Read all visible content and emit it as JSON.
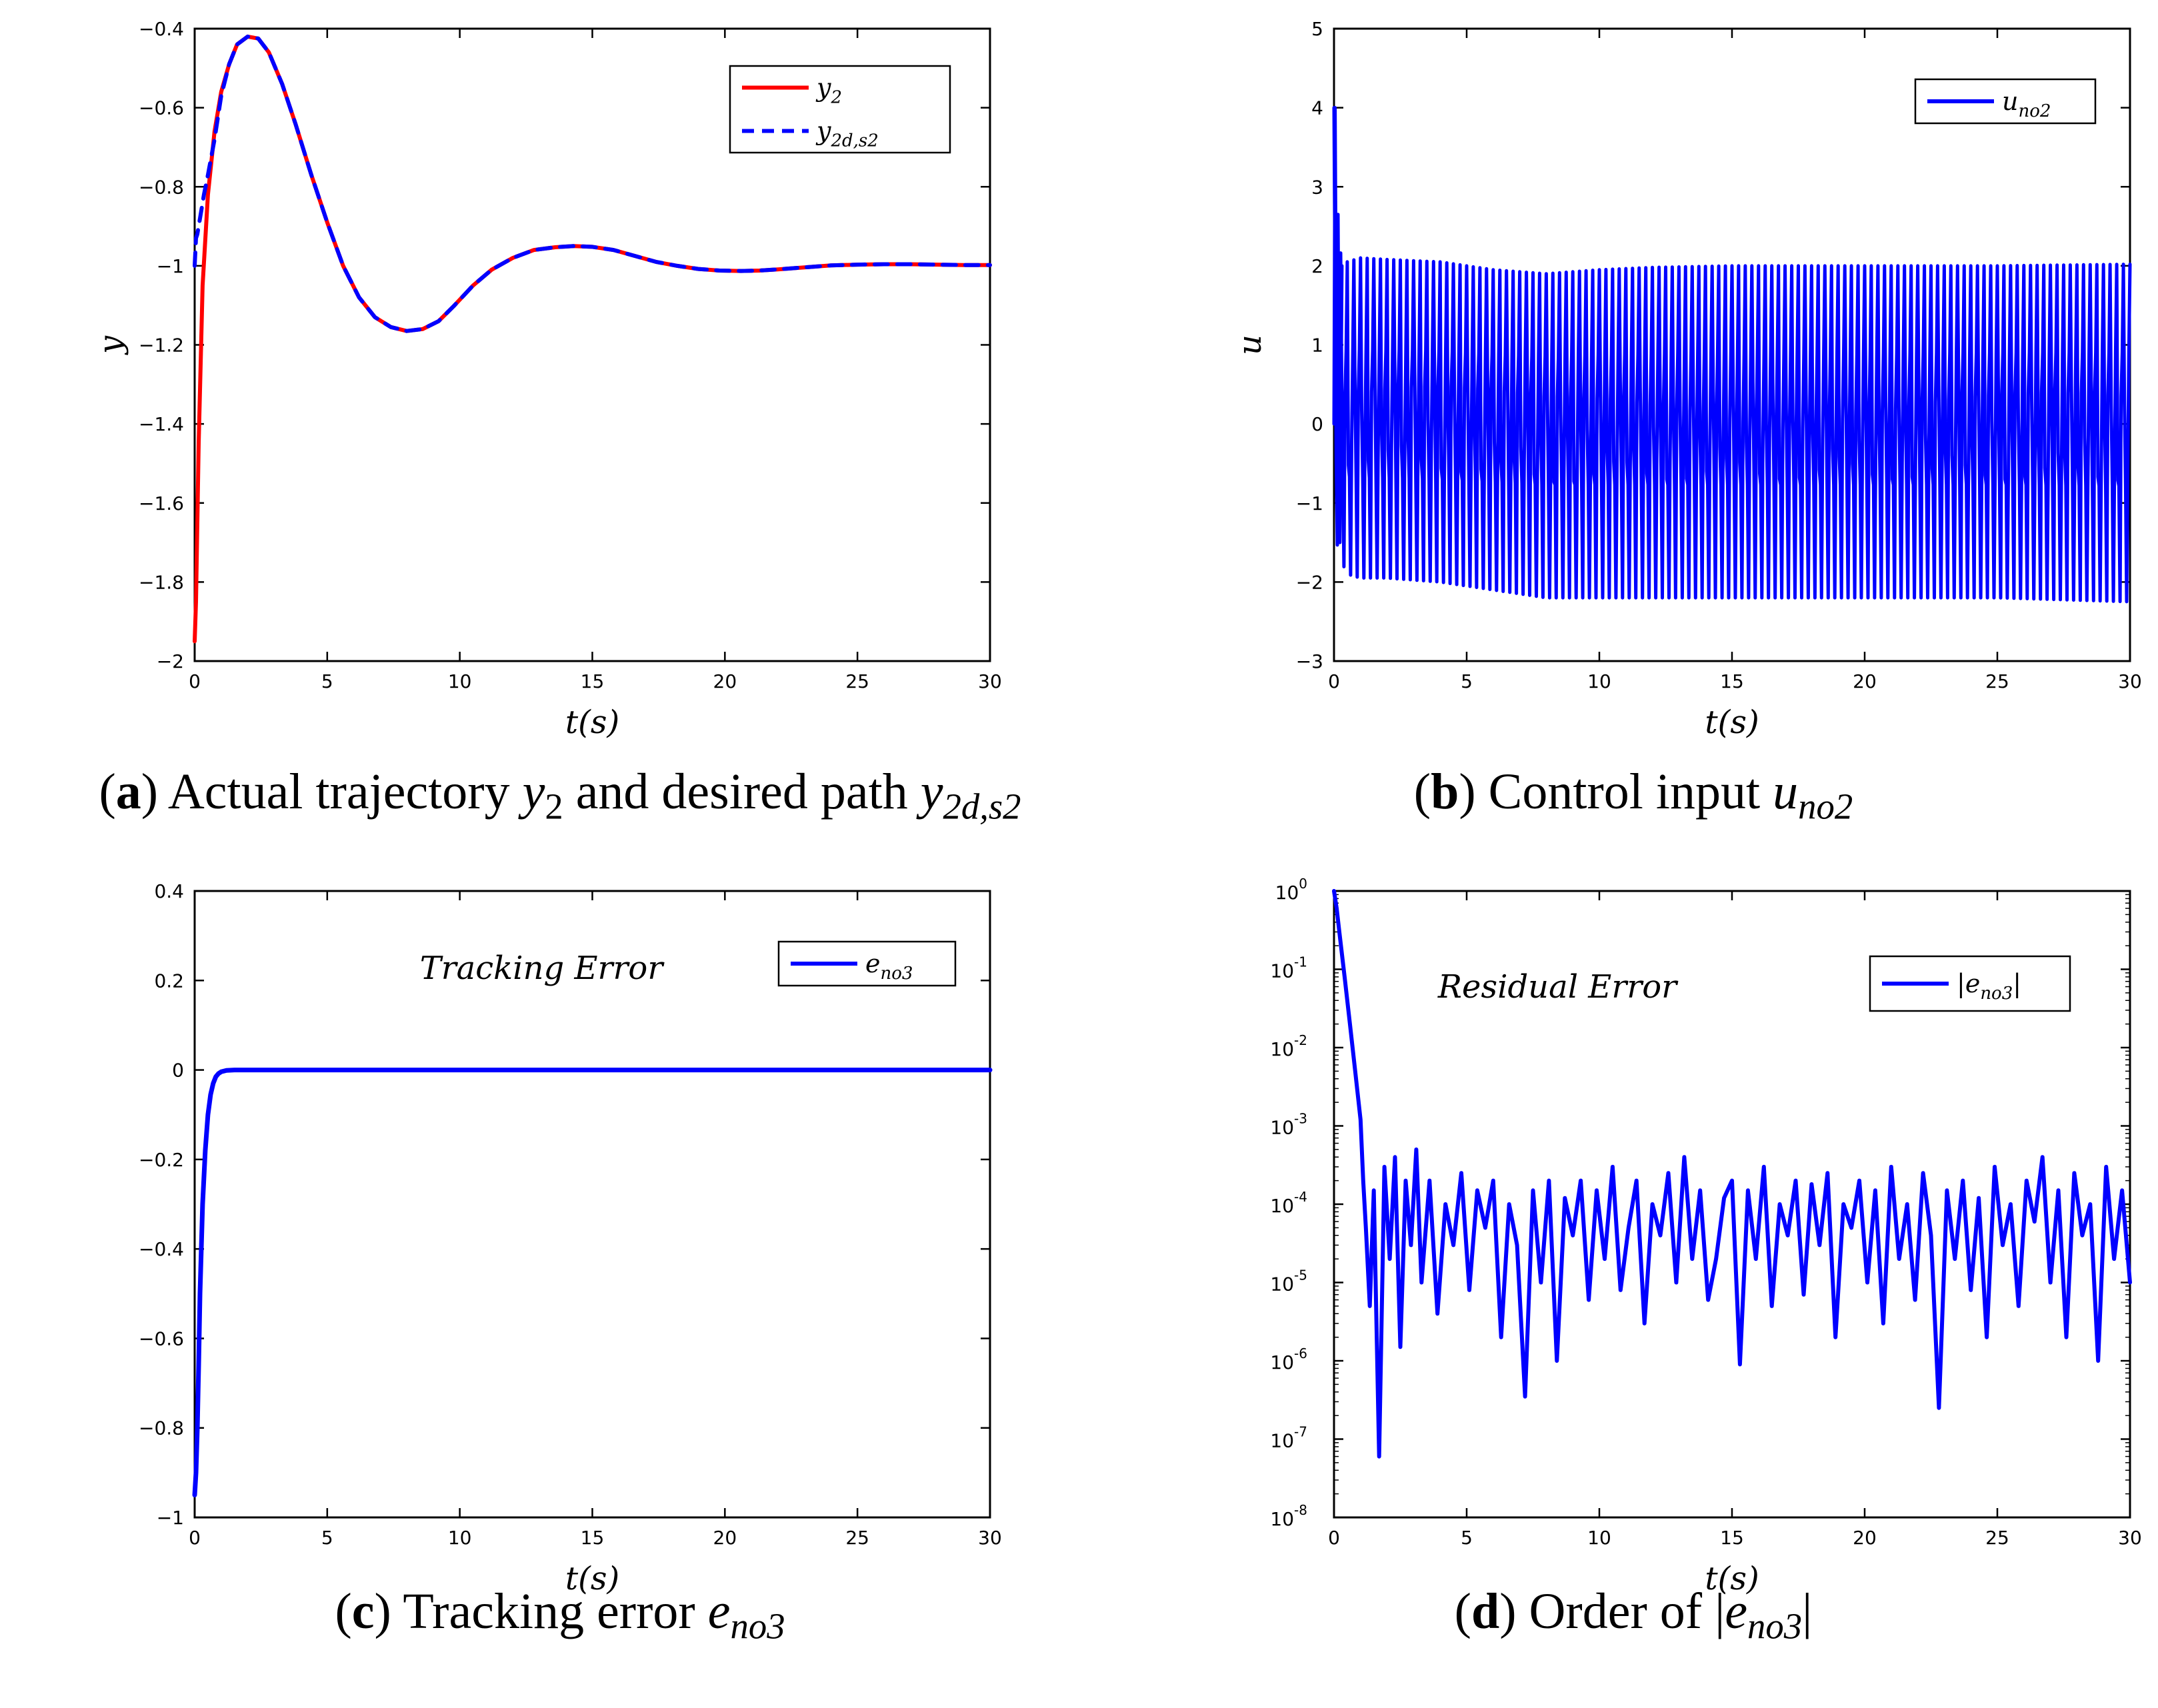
{
  "colors": {
    "red": "#ff0000",
    "blue": "#0000ff",
    "black": "#000000"
  },
  "chart_data": [
    {
      "id": "a",
      "type": "line",
      "xlabel": "t(s)",
      "ylabel": "y",
      "xlim": [
        0,
        30
      ],
      "ylim": [
        -2,
        -0.4
      ],
      "xticks": [
        "0",
        "5",
        "10",
        "15",
        "20",
        "25",
        "30"
      ],
      "yticks": [
        "−0.4",
        "−0.6",
        "−0.8",
        "−1",
        "−1.2",
        "−1.4",
        "−1.6",
        "−1.8",
        "−2"
      ],
      "legend_position": "top-right",
      "series": [
        {
          "name": "y2",
          "label_main": "y",
          "label_sub": "2",
          "style": "solid",
          "color": "#ff0000",
          "x": [
            0,
            0.05,
            0.15,
            0.3,
            0.5,
            0.75,
            1.0,
            1.3,
            1.6,
            2.0,
            2.4,
            2.8,
            3.3,
            3.8,
            4.4,
            5.0,
            5.6,
            6.2,
            6.8,
            7.4,
            8.0,
            8.6,
            9.2,
            9.8,
            10.5,
            11.2,
            12.0,
            12.8,
            13.6,
            14.3,
            15.0,
            15.8,
            16.6,
            17.4,
            18.2,
            19.0,
            19.8,
            20.6,
            21.3,
            22.0,
            23.0,
            24.0,
            25.0,
            26.0,
            27.0,
            28.0,
            29.0,
            30.0
          ],
          "values": [
            -1.95,
            -1.85,
            -1.45,
            -1.05,
            -0.82,
            -0.66,
            -0.56,
            -0.49,
            -0.44,
            -0.42,
            -0.425,
            -0.46,
            -0.54,
            -0.64,
            -0.77,
            -0.89,
            -1.0,
            -1.08,
            -1.13,
            -1.155,
            -1.165,
            -1.16,
            -1.14,
            -1.1,
            -1.05,
            -1.01,
            -0.98,
            -0.96,
            -0.953,
            -0.95,
            -0.952,
            -0.96,
            -0.975,
            -0.99,
            -1.0,
            -1.008,
            -1.012,
            -1.013,
            -1.012,
            -1.009,
            -1.004,
            -0.999,
            -0.997,
            -0.996,
            -0.996,
            -0.997,
            -0.998,
            -0.998
          ]
        },
        {
          "name": "y2d,s2",
          "label_main": "y",
          "label_sub": "2d,s2",
          "style": "dashed",
          "color": "#0000ff",
          "x": [
            0,
            0.05,
            0.1,
            0.2,
            0.35,
            0.5,
            0.75,
            1.0,
            1.3,
            1.6,
            2.0,
            2.4,
            2.8,
            3.3,
            3.8,
            4.4,
            5.0,
            5.6,
            6.2,
            6.8,
            7.4,
            8.0,
            8.6,
            9.2,
            9.8,
            10.5,
            11.2,
            12.0,
            12.8,
            13.6,
            14.3,
            15.0,
            15.8,
            16.6,
            17.4,
            18.2,
            19.0,
            19.8,
            20.6,
            21.3,
            22.0,
            23.0,
            24.0,
            25.0,
            26.0,
            27.0,
            28.0,
            29.0,
            30.0
          ],
          "values": [
            -1.0,
            -0.93,
            -0.92,
            -0.88,
            -0.82,
            -0.77,
            -0.68,
            -0.57,
            -0.49,
            -0.44,
            -0.42,
            -0.425,
            -0.46,
            -0.54,
            -0.64,
            -0.77,
            -0.89,
            -1.0,
            -1.08,
            -1.13,
            -1.155,
            -1.165,
            -1.16,
            -1.14,
            -1.1,
            -1.05,
            -1.01,
            -0.98,
            -0.96,
            -0.953,
            -0.95,
            -0.952,
            -0.96,
            -0.975,
            -0.99,
            -1.0,
            -1.008,
            -1.012,
            -1.013,
            -1.012,
            -1.009,
            -1.004,
            -0.999,
            -0.997,
            -0.996,
            -0.996,
            -0.997,
            -0.998,
            -0.998
          ]
        }
      ],
      "caption": {
        "letter": "a",
        "text1": " Actual trajectory ",
        "v1": "y",
        "s1": "2",
        "text2": " and desired path ",
        "v2": "y",
        "s2": "2d,s2"
      }
    },
    {
      "id": "b",
      "type": "line",
      "xlabel": "t(s)",
      "ylabel": "u",
      "xlim": [
        0,
        30
      ],
      "ylim": [
        -3,
        5
      ],
      "xticks": [
        "0",
        "5",
        "10",
        "15",
        "20",
        "25",
        "30"
      ],
      "yticks": [
        "5",
        "4",
        "3",
        "2",
        "1",
        "0",
        "−1",
        "−2",
        "−3"
      ],
      "legend_position": "top-right",
      "series": [
        {
          "name": "uno2",
          "label_main": "u",
          "label_sub": "no2",
          "style": "solid",
          "color": "#0000ff",
          "oscillation_period": 0.25,
          "peak_x": [
            0.0,
            0.1,
            0.3,
            0.5,
            1.0,
            2.0,
            4.0,
            6.0,
            8.0,
            10.0,
            12.0,
            15.0,
            20.0,
            25.0,
            30.0
          ],
          "upper_envelope": [
            4.0,
            2.65,
            2.0,
            2.05,
            2.1,
            2.08,
            2.05,
            1.95,
            1.9,
            1.95,
            1.98,
            2.0,
            2.0,
            2.0,
            2.02
          ],
          "lower_envelope": [
            0.0,
            -1.5,
            -1.75,
            -1.9,
            -1.95,
            -1.95,
            -2.0,
            -2.1,
            -2.2,
            -2.2,
            -2.2,
            -2.2,
            -2.2,
            -2.2,
            -2.25
          ]
        }
      ],
      "caption": {
        "letter": "b",
        "text1": " Control input ",
        "v1": "u",
        "s1": "no2"
      }
    },
    {
      "id": "c",
      "type": "line",
      "xlabel": "t(s)",
      "ylabel": "",
      "xlim": [
        0,
        30
      ],
      "ylim": [
        -1,
        0.4
      ],
      "xticks": [
        "0",
        "5",
        "10",
        "15",
        "20",
        "25",
        "30"
      ],
      "yticks": [
        "0.4",
        "0.2",
        "0",
        "−0.2",
        "−0.4",
        "−0.6",
        "−0.8",
        "−1"
      ],
      "annotation": "Tracking Error",
      "legend_position": "top-right",
      "series": [
        {
          "name": "eno3",
          "label_main": "e",
          "label_sub": "no3",
          "style": "solid",
          "color": "#0000ff",
          "x": [
            0,
            0.05,
            0.1,
            0.15,
            0.2,
            0.3,
            0.4,
            0.5,
            0.6,
            0.7,
            0.8,
            0.9,
            1.0,
            1.2,
            1.5,
            2.0,
            5.0,
            10.0,
            15.0,
            20.0,
            25.0,
            30.0
          ],
          "values": [
            -0.95,
            -0.9,
            -0.8,
            -0.66,
            -0.5,
            -0.3,
            -0.18,
            -0.1,
            -0.055,
            -0.03,
            -0.015,
            -0.008,
            -0.004,
            -0.001,
            0,
            0,
            0,
            0,
            0,
            0,
            0,
            0
          ]
        }
      ],
      "caption": {
        "letter": "c",
        "text1": " Tracking error ",
        "v1": "e",
        "s1": "no3"
      }
    },
    {
      "id": "d",
      "type": "line",
      "scale": "log",
      "xlabel": "t(s)",
      "ylabel": "",
      "xlim": [
        0,
        30
      ],
      "ylim_exponent": [
        -8,
        0
      ],
      "xticks": [
        "0",
        "5",
        "10",
        "15",
        "20",
        "25",
        "30"
      ],
      "yticks_base": "10",
      "yticks_exp": [
        "0",
        "-1",
        "-2",
        "-3",
        "-4",
        "-5",
        "-6",
        "-7",
        "-8"
      ],
      "annotation": "Residual Error",
      "legend_position": "top-right",
      "series": [
        {
          "name": "|eno3|",
          "label_main": "e",
          "label_sub": "no3",
          "style": "solid",
          "color": "#0000ff",
          "x": [
            0,
            0.1,
            0.2,
            0.4,
            0.6,
            0.8,
            1.0,
            1.1,
            1.2,
            1.35,
            1.5,
            1.7,
            1.9,
            2.1,
            2.3,
            2.5,
            2.7,
            2.9,
            3.1,
            3.3,
            3.6,
            3.9,
            4.2,
            4.5,
            4.8,
            5.1,
            5.4,
            5.7,
            6.0,
            6.3,
            6.6,
            6.9,
            7.2,
            7.5,
            7.8,
            8.1,
            8.4,
            8.7,
            9.0,
            9.3,
            9.6,
            9.9,
            10.2,
            10.5,
            10.8,
            11.1,
            11.4,
            11.7,
            12.0,
            12.3,
            12.6,
            12.9,
            13.2,
            13.5,
            13.8,
            14.1,
            14.4,
            14.7,
            15.0,
            15.3,
            15.6,
            15.9,
            16.2,
            16.5,
            16.8,
            17.1,
            17.4,
            17.7,
            18.0,
            18.3,
            18.6,
            18.9,
            19.2,
            19.5,
            19.8,
            20.1,
            20.4,
            20.7,
            21.0,
            21.3,
            21.6,
            21.9,
            22.2,
            22.5,
            22.8,
            23.1,
            23.4,
            23.7,
            24.0,
            24.3,
            24.6,
            24.9,
            25.2,
            25.5,
            25.8,
            26.1,
            26.4,
            26.7,
            27.0,
            27.3,
            27.6,
            27.9,
            28.2,
            28.5,
            28.8,
            29.1,
            29.4,
            29.7,
            30.0
          ],
          "values": [
            1.0,
            0.6,
            0.3,
            0.08,
            0.02,
            0.005,
            0.0012,
            0.0002,
            5e-05,
            5e-06,
            0.00015,
            6e-08,
            0.0003,
            2e-05,
            0.0004,
            1.5e-06,
            0.0002,
            3e-05,
            0.0005,
            1e-05,
            0.0002,
            4e-06,
            0.0001,
            3e-05,
            0.00025,
            8e-06,
            0.00015,
            5e-05,
            0.0002,
            2e-06,
            0.0001,
            3e-05,
            3.5e-07,
            0.00015,
            1e-05,
            0.0002,
            1e-06,
            0.00012,
            4e-05,
            0.0002,
            6e-06,
            0.00015,
            2e-05,
            0.0003,
            8e-06,
            5e-05,
            0.0002,
            3e-06,
            0.0001,
            4e-05,
            0.00025,
            1e-05,
            0.0004,
            2e-05,
            0.00015,
            6e-06,
            2e-05,
            0.00012,
            0.0002,
            9e-07,
            0.00015,
            2e-05,
            0.0003,
            5e-06,
            0.0001,
            4e-05,
            0.0002,
            7e-06,
            0.00018,
            3e-05,
            0.00025,
            2e-06,
            0.0001,
            5e-05,
            0.0002,
            1e-05,
            0.00015,
            3e-06,
            0.0003,
            2e-05,
            0.0001,
            6e-06,
            0.00025,
            4e-05,
            2.5e-07,
            0.00015,
            2e-05,
            0.0002,
            8e-06,
            0.00012,
            2e-06,
            0.0003,
            3e-05,
            0.0001,
            5e-06,
            0.0002,
            6e-05,
            0.0004,
            1e-05,
            0.00015,
            2e-06,
            0.00025,
            4e-05,
            0.0001,
            1e-06,
            0.0003,
            2e-05,
            0.00015,
            1e-05
          ],
          "label_bars": true
        }
      ],
      "caption": {
        "letter": "d",
        "text1": " Order of ",
        "v1": "e",
        "s1": "no3",
        "abs": true
      }
    }
  ]
}
